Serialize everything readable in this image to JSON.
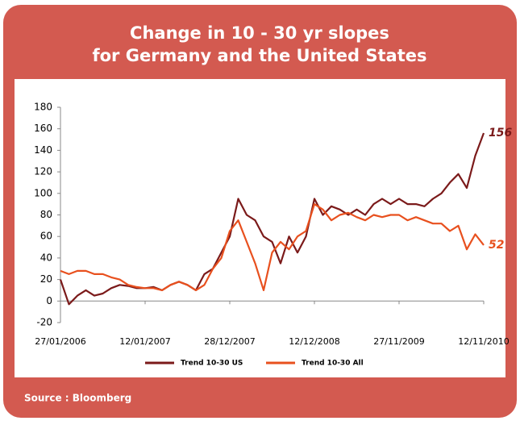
{
  "chart_data": {
    "type": "line",
    "title": [
      "Change in 10 - 30 yr slopes",
      "for Germany and the United States"
    ],
    "source": "Source : Bloomberg",
    "x": [
      "27/01/2006",
      "03/03/2006",
      "07/04/2006",
      "12/05/2006",
      "16/06/2006",
      "21/07/2006",
      "25/08/2006",
      "29/09/2006",
      "03/11/2006",
      "08/12/2006",
      "12/01/2007",
      "16/02/2007",
      "23/03/2007",
      "27/04/2007",
      "01/06/2007",
      "06/07/2007",
      "10/08/2007",
      "14/09/2007",
      "19/10/2007",
      "23/11/2007",
      "28/12/2007",
      "01/02/2008",
      "07/03/2008",
      "11/04/2008",
      "16/05/2008",
      "20/06/2008",
      "25/07/2008",
      "29/08/2008",
      "03/10/2008",
      "07/11/2008",
      "12/12/2008",
      "16/01/2009",
      "20/02/2009",
      "27/03/2009",
      "01/05/2009",
      "05/06/2009",
      "10/07/2009",
      "14/08/2009",
      "18/09/2009",
      "23/10/2009",
      "27/11/2009",
      "01/01/2010",
      "05/02/2010",
      "12/03/2010",
      "16/04/2010",
      "21/05/2010",
      "25/06/2010",
      "30/07/2010",
      "03/09/2010",
      "08/10/2010",
      "12/11/2010"
    ],
    "series": [
      {
        "name": "Trend 10-30 US",
        "color": "#7b1a1a",
        "values": [
          20,
          -3,
          5,
          10,
          5,
          7,
          12,
          15,
          14,
          12,
          12,
          13,
          10,
          15,
          18,
          15,
          10,
          25,
          30,
          45,
          60,
          95,
          80,
          75,
          60,
          55,
          35,
          60,
          45,
          60,
          95,
          80,
          88,
          85,
          80,
          85,
          80,
          90,
          95,
          90,
          95,
          90,
          90,
          88,
          95,
          100,
          110,
          118,
          105,
          135,
          156
        ]
      },
      {
        "name": "Trend 10-30 All",
        "color": "#e8501e",
        "values": [
          28,
          25,
          28,
          28,
          25,
          25,
          22,
          20,
          15,
          13,
          12,
          12,
          10,
          15,
          18,
          15,
          10,
          15,
          30,
          40,
          65,
          75,
          55,
          35,
          10,
          45,
          55,
          48,
          60,
          65,
          90,
          85,
          75,
          80,
          82,
          78,
          75,
          80,
          78,
          80,
          80,
          75,
          78,
          75,
          72,
          72,
          65,
          70,
          48,
          62,
          52
        ]
      }
    ],
    "xlim": [
      "27/01/2006",
      "12/11/2010"
    ],
    "xticks": [
      "27/01/2006",
      "12/01/2007",
      "28/12/2007",
      "12/12/2008",
      "27/11/2009",
      "12/11/2010"
    ],
    "ylim": [
      -20,
      180
    ],
    "yticks": [
      -20,
      0,
      20,
      40,
      60,
      80,
      100,
      120,
      140,
      160,
      180
    ],
    "legend": "bottom"
  }
}
